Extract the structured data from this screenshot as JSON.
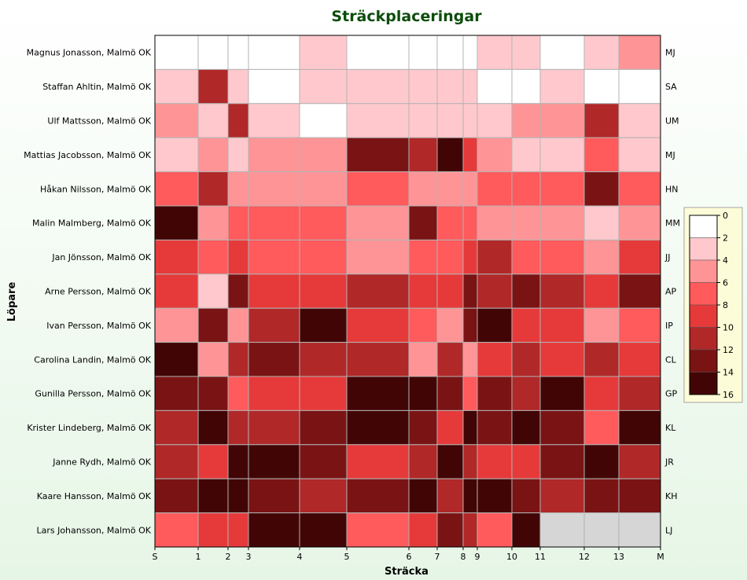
{
  "chart_data": {
    "type": "heatmap",
    "title": "Sträckplaceringar",
    "xlabel": "Sträcka",
    "ylabel": "Löpare",
    "x_ticks": [
      "S",
      "1",
      "2",
      "3",
      "4",
      "5",
      "6",
      "7",
      "8",
      "9",
      "10",
      "11",
      "12",
      "13",
      "M"
    ],
    "rows": [
      {
        "name": "Magnus Jonasson, Malmö OK",
        "code": "MJ",
        "values": [
          0,
          0,
          0,
          0,
          3,
          0,
          0,
          0,
          0,
          3,
          3,
          0,
          3,
          5
        ]
      },
      {
        "name": "Staffan Ahltin, Malmö OK",
        "code": "SA",
        "values": [
          3,
          11,
          3,
          0,
          3,
          3,
          3,
          3,
          3,
          0,
          0,
          3,
          0,
          0
        ]
      },
      {
        "name": "Ulf Mattsson, Malmö OK",
        "code": "UM",
        "values": [
          5,
          3,
          11,
          3,
          0,
          3,
          3,
          3,
          3,
          3,
          5,
          5,
          11,
          3
        ]
      },
      {
        "name": "Mattias Jacobsson, Malmö OK",
        "code": "MJ",
        "values": [
          3,
          5,
          3,
          5,
          5,
          13,
          11,
          15,
          9,
          5,
          3,
          3,
          7,
          3
        ]
      },
      {
        "name": "Håkan Nilsson, Malmö OK",
        "code": "HN",
        "values": [
          7,
          11,
          5,
          5,
          5,
          7,
          5,
          5,
          5,
          7,
          7,
          7,
          13,
          7
        ]
      },
      {
        "name": "Malin Malmberg, Malmö OK",
        "code": "MM",
        "values": [
          15,
          5,
          7,
          7,
          7,
          5,
          13,
          7,
          7,
          5,
          5,
          5,
          3,
          5
        ]
      },
      {
        "name": "Jan Jönsson, Malmö OK",
        "code": "JJ",
        "values": [
          9,
          7,
          9,
          7,
          7,
          5,
          7,
          7,
          9,
          11,
          7,
          7,
          5,
          9
        ]
      },
      {
        "name": "Arne Persson, Malmö OK",
        "code": "AP",
        "values": [
          9,
          3,
          13,
          9,
          9,
          11,
          9,
          9,
          13,
          11,
          13,
          11,
          9,
          13
        ]
      },
      {
        "name": "Ivan Persson, Malmö OK",
        "code": "IP",
        "values": [
          5,
          13,
          5,
          11,
          15,
          9,
          7,
          5,
          13,
          15,
          9,
          9,
          5,
          7
        ]
      },
      {
        "name": "Carolina Landin, Malmö OK",
        "code": "CL",
        "values": [
          15,
          5,
          11,
          13,
          11,
          11,
          5,
          11,
          5,
          9,
          11,
          9,
          11,
          9
        ]
      },
      {
        "name": "Gunilla Persson, Malmö OK",
        "code": "GP",
        "values": [
          13,
          13,
          7,
          9,
          9,
          15,
          15,
          13,
          7,
          13,
          11,
          15,
          9,
          11
        ]
      },
      {
        "name": "Krister Lindeberg, Malmö OK",
        "code": "KL",
        "values": [
          11,
          15,
          11,
          11,
          13,
          15,
          13,
          9,
          15,
          13,
          15,
          13,
          7,
          15
        ]
      },
      {
        "name": "Janne Rydh, Malmö OK",
        "code": "JR",
        "values": [
          11,
          9,
          15,
          15,
          13,
          9,
          11,
          15,
          11,
          9,
          9,
          13,
          15,
          11
        ]
      },
      {
        "name": "Kaare Hansson, Malmö OK",
        "code": "KH",
        "values": [
          13,
          15,
          15,
          13,
          11,
          13,
          15,
          11,
          15,
          15,
          13,
          11,
          13,
          13
        ]
      },
      {
        "name": "Lars Johansson, Malmö OK",
        "code": "LJ",
        "values": [
          7,
          9,
          9,
          15,
          15,
          7,
          9,
          13,
          11,
          7,
          15,
          null,
          null,
          null
        ]
      }
    ],
    "color_scale": {
      "ticks": [
        "0",
        "2",
        "4",
        "6",
        "8",
        "10",
        "12",
        "14",
        "16"
      ],
      "colors": [
        "#ffffff",
        "#ffc8cc",
        "#ff9496",
        "#ff5a5c",
        "#e63a3a",
        "#b02828",
        "#7a1414",
        "#420505"
      ],
      "missing_color": "#d6d6d6",
      "placement": "right"
    }
  }
}
